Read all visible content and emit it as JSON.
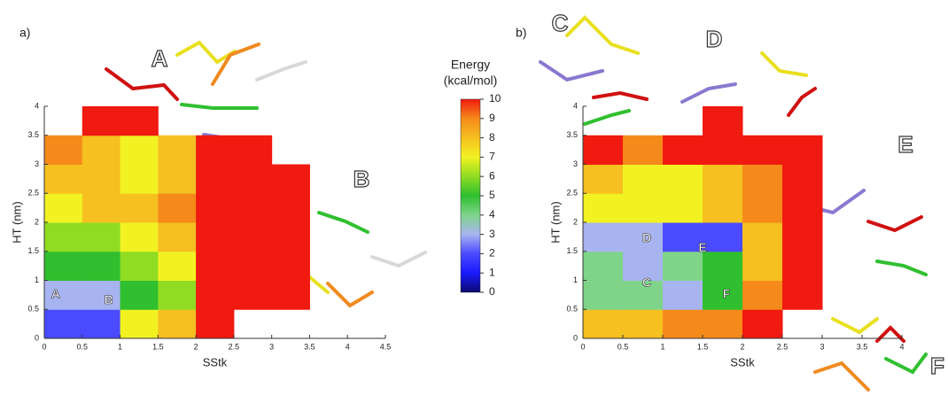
{
  "chart_data": [
    {
      "type": "heatmap",
      "panel_label": "a)",
      "x_label": "SStk",
      "y_label": "HT (nm)",
      "xlim": [
        0,
        4.5
      ],
      "ylim": [
        0,
        4
      ],
      "xticks": [
        0,
        0.5,
        1,
        1.5,
        2,
        2.5,
        3,
        3.5,
        4,
        4.5
      ],
      "yticks": [
        0,
        0.5,
        1,
        1.5,
        2,
        2.5,
        3,
        3.5,
        4
      ],
      "x_edges": [
        0,
        0.5,
        1,
        1.5,
        2,
        2.5,
        3,
        3.5
      ],
      "y_edges": [
        0,
        0.5,
        1,
        1.5,
        2,
        2.5,
        3,
        3.5,
        4
      ],
      "z": [
        [
          2,
          2,
          7,
          8,
          10,
          null,
          null
        ],
        [
          3,
          3,
          5,
          6,
          10,
          10,
          10
        ],
        [
          5,
          5,
          6,
          7,
          10,
          10,
          10
        ],
        [
          6,
          6,
          7,
          8,
          10,
          10,
          10
        ],
        [
          7,
          8,
          8,
          9,
          10,
          10,
          10
        ],
        [
          8,
          8,
          7,
          8,
          10,
          10,
          10
        ],
        [
          9,
          8,
          7,
          8,
          10,
          10,
          null
        ],
        [
          null,
          10,
          10,
          null,
          null,
          null,
          null
        ]
      ],
      "state_labels": [
        "A",
        "B"
      ],
      "structure_labels": [
        "A",
        "B"
      ]
    },
    {
      "type": "heatmap",
      "panel_label": "b)",
      "x_label": "SStk",
      "y_label": "HT (nm)",
      "xlim": [
        0,
        4
      ],
      "ylim": [
        0,
        4
      ],
      "xticks": [
        0,
        0.5,
        1,
        1.5,
        2,
        2.5,
        3,
        3.5,
        4
      ],
      "yticks": [
        0,
        0.5,
        1,
        1.5,
        2,
        2.5,
        3,
        3.5,
        4
      ],
      "x_edges": [
        0,
        0.5,
        1,
        1.5,
        2,
        2.5,
        3
      ],
      "y_edges": [
        0,
        0.5,
        1,
        1.5,
        2,
        2.5,
        3,
        3.5,
        4
      ],
      "z": [
        [
          8,
          8,
          9,
          9,
          10,
          null
        ],
        [
          4,
          4,
          3,
          5,
          9,
          10
        ],
        [
          4,
          3,
          4,
          5,
          8,
          10
        ],
        [
          3,
          3,
          2,
          2,
          8,
          10
        ],
        [
          7,
          7,
          7,
          8,
          9,
          10
        ],
        [
          8,
          7,
          7,
          8,
          9,
          10
        ],
        [
          10,
          9,
          10,
          10,
          10,
          10
        ],
        [
          null,
          null,
          null,
          10,
          null,
          null
        ]
      ],
      "state_labels": [
        "D",
        "E",
        "C",
        "F"
      ],
      "structure_labels": [
        "C",
        "D",
        "E",
        "F"
      ]
    },
    {
      "type": "colorbar",
      "title": [
        "Energy",
        "(kcal/mol)"
      ],
      "lim": [
        0,
        10
      ],
      "ticks": [
        0,
        1,
        2,
        3,
        4,
        5,
        6,
        7,
        8,
        9,
        10
      ],
      "colors": [
        "#0a0a6e",
        "#1a1aff",
        "#4a4aff",
        "#a8b4f0",
        "#7fd48a",
        "#2fbf2f",
        "#8fdc22",
        "#f2f222",
        "#f5c020",
        "#f58a1a",
        "#f01a10"
      ]
    }
  ]
}
